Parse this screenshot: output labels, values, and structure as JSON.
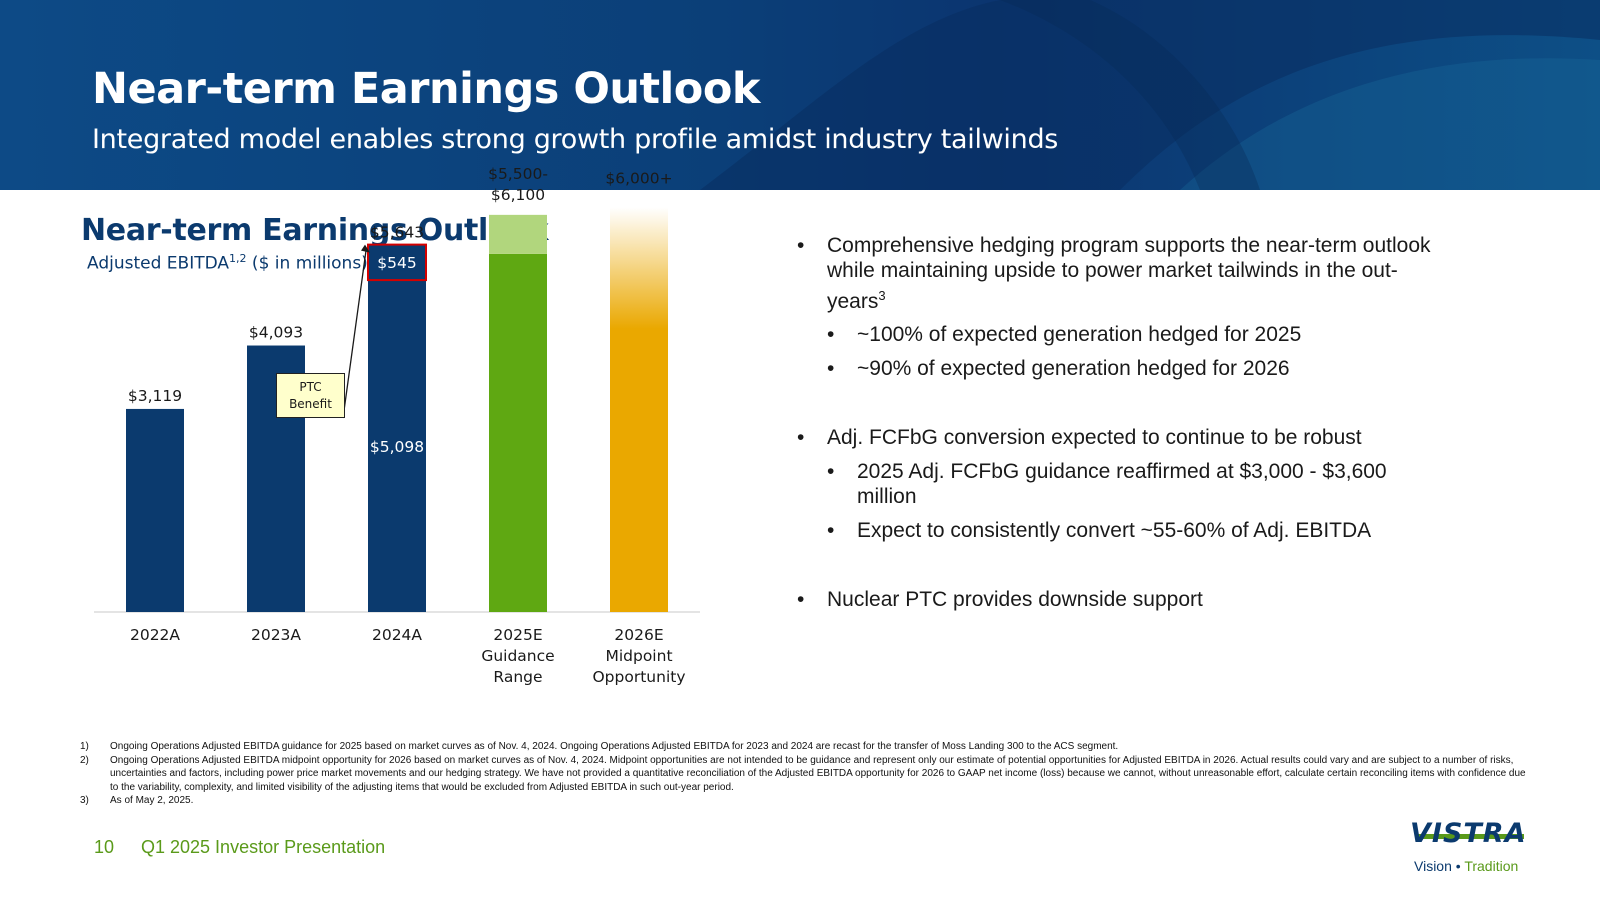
{
  "header": {
    "title": "Near-term Earnings Outlook",
    "subtitle": "Integrated model enables strong growth profile amidst industry tailwinds"
  },
  "section": {
    "title": "Near-term Earnings Outlook",
    "subtitle_main": "Adjusted EBITDA",
    "subtitle_sup": "1,2",
    "subtitle_rest": " ($ in millions)"
  },
  "chart_data": {
    "type": "bar",
    "categories": [
      "2022A",
      "2023A",
      "2024A",
      "2025E Guidance Range",
      "2026E Midpoint Opportunity"
    ],
    "category_lines": [
      [
        "2022A"
      ],
      [
        "2023A"
      ],
      [
        "2024A"
      ],
      [
        "2025E",
        "Guidance",
        "Range"
      ],
      [
        "2026E",
        "Midpoint",
        "Opportunity"
      ]
    ],
    "bars": [
      {
        "category": "2022A",
        "value": 3119,
        "label": "$3,119",
        "color": "#0b3a6e"
      },
      {
        "category": "2023A",
        "value": 4093,
        "label": "$4,093",
        "color": "#0b3a6e"
      },
      {
        "category": "2024A",
        "value": 5643,
        "label": "$5,643",
        "color": "#0b3a6e",
        "segments": [
          {
            "name": "base",
            "value": 5098,
            "label": "$5,098"
          },
          {
            "name": "PTC Benefit",
            "value": 545,
            "label": "$545"
          }
        ]
      },
      {
        "category": "2025E Guidance Range",
        "low": 5500,
        "high": 6100,
        "label_lines": [
          "$5,500-",
          "$6,100"
        ],
        "color": "#5fa812",
        "range_color": "#b1d67d"
      },
      {
        "category": "2026E Midpoint Opportunity",
        "value": 6000,
        "label": "$6,000+",
        "color": "#eaa800",
        "gradient": true
      }
    ],
    "annotation": {
      "text_lines": [
        "PTC",
        "Benefit"
      ],
      "target": "2024A"
    },
    "ylim": [
      0,
      9400
    ],
    "xlabel": "",
    "ylabel": ""
  },
  "bullets": [
    {
      "level": 1,
      "text": "Comprehensive hedging program supports the near-term outlook while maintaining upside to power market tailwinds in the out-years",
      "sup": "3"
    },
    {
      "level": 2,
      "text": "~100% of expected generation hedged for 2025"
    },
    {
      "level": 2,
      "text": "~90% of expected generation hedged for 2026"
    },
    {
      "level": 1,
      "text": "Adj. FCFbG conversion expected to continue to be robust"
    },
    {
      "level": 2,
      "text": "2025 Adj. FCFbG guidance reaffirmed at $3,000 - $3,600 million"
    },
    {
      "level": 2,
      "text": "Expect to consistently convert ~55-60% of Adj. EBITDA"
    },
    {
      "level": 1,
      "text": "Nuclear PTC provides downside support"
    }
  ],
  "footnotes": [
    {
      "num": "1)",
      "text": "Ongoing Operations Adjusted EBITDA guidance for 2025 based on market curves as of Nov. 4, 2024. Ongoing Operations Adjusted EBITDA for 2023 and 2024 are recast for the transfer of Moss Landing 300 to the ACS segment."
    },
    {
      "num": "2)",
      "text": "Ongoing Operations Adjusted EBITDA midpoint opportunity for 2026 based on market curves as of Nov. 4, 2024. Midpoint opportunities are not intended to be guidance and represent only our estimate of potential opportunities for Adjusted EBITDA in 2026. Actual results could vary and are subject to a number of risks, uncertainties and factors, including power price market movements and our hedging strategy. We have not provided a quantitative reconciliation of the Adjusted EBITDA opportunity for 2026 to GAAP net income (loss) because we cannot, without unreasonable effort, calculate certain reconciling items with confidence due to the variability, complexity, and limited visibility of the adjusting items that would be excluded from Adjusted EBITDA in such out-year period."
    },
    {
      "num": "3)",
      "text": "As of May 2, 2025."
    }
  ],
  "footer": {
    "page_number": "10",
    "presentation": "Q1 2025 Investor Presentation"
  },
  "logo": {
    "word": "VISTRA",
    "tag_left": "Vision",
    "tag_sep": " • ",
    "tag_right": "Tradition"
  },
  "colors": {
    "navy": "#0b3a6e",
    "green": "#5fa812",
    "light_green": "#b1d67d",
    "gold": "#eaa800",
    "footer_green": "#5a9a1a"
  }
}
